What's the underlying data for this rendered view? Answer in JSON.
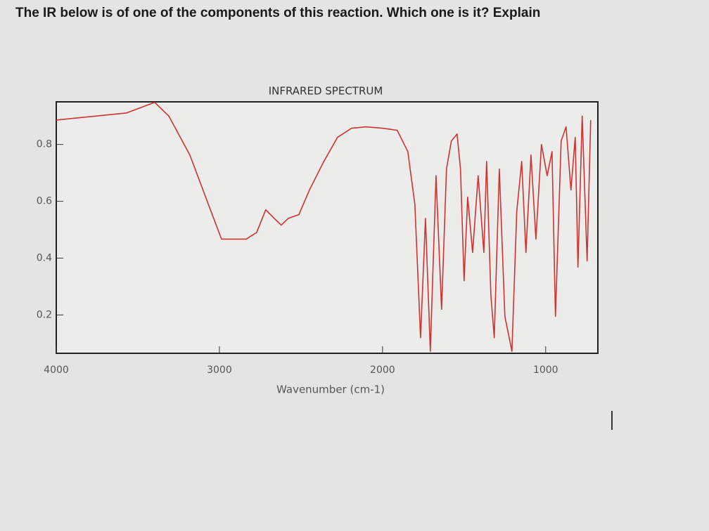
{
  "question": "The IR below is of one of the components of this reaction. Which one is it? Explain",
  "chart_data": {
    "type": "line",
    "title": "INFRARED SPECTRUM",
    "x_label": "Wavenumber (cm-1)",
    "x": [
      4000,
      3569,
      3397,
      3310,
      3181,
      3052,
      2987,
      2922,
      2836,
      2772,
      2716,
      2664,
      2621,
      2578,
      2513,
      2448,
      2362,
      2276,
      2190,
      2103,
      2000,
      1910,
      1845,
      1802,
      1767,
      1737,
      1707,
      1672,
      1638,
      1608,
      1578,
      1543,
      1522,
      1500,
      1478,
      1448,
      1414,
      1379,
      1362,
      1336,
      1315,
      1284,
      1250,
      1207,
      1177,
      1147,
      1121,
      1090,
      1060,
      1026,
      991,
      961,
      940,
      905,
      875,
      845,
      819,
      802,
      776,
      746,
      724
    ],
    "series": [
      {
        "color": "#cc3333",
        "values": [
          0.886,
          0.911,
          0.948,
          0.9,
          0.763,
          0.565,
          0.467,
          0.467,
          0.467,
          0.49,
          0.57,
          0.54,
          0.516,
          0.54,
          0.553,
          0.64,
          0.738,
          0.825,
          0.857,
          0.862,
          0.857,
          0.85,
          0.775,
          0.59,
          0.12,
          0.54,
          0.072,
          0.69,
          0.22,
          0.714,
          0.812,
          0.837,
          0.714,
          0.32,
          0.615,
          0.42,
          0.69,
          0.42,
          0.74,
          0.27,
          0.12,
          0.714,
          0.195,
          0.072,
          0.565,
          0.74,
          0.42,
          0.763,
          0.467,
          0.8,
          0.69,
          0.775,
          0.195,
          0.812,
          0.862,
          0.64,
          0.825,
          0.368,
          0.9,
          0.39,
          0.886
        ]
      }
    ],
    "xlim": [
      4000,
      680
    ],
    "ylim": [
      0.065,
      0.95
    ],
    "xticks": [
      4000,
      3000,
      2000,
      1000
    ],
    "yticks": [
      0.2,
      0.4,
      0.6,
      0.8
    ]
  }
}
